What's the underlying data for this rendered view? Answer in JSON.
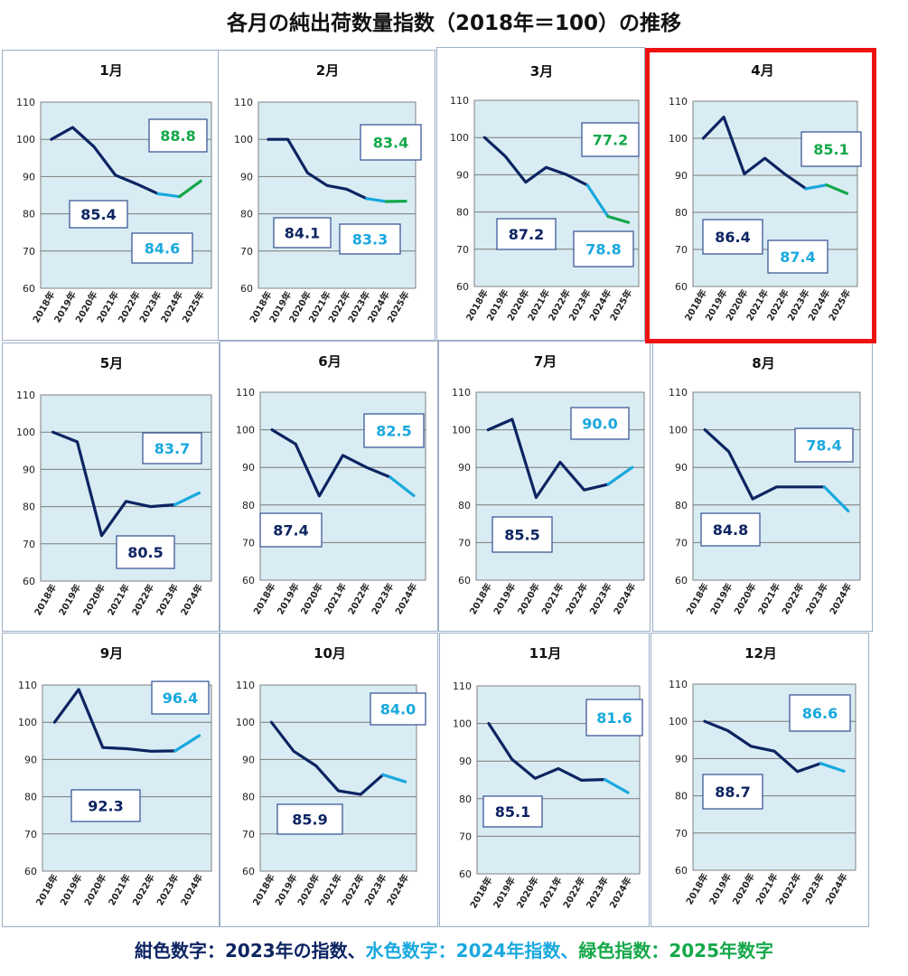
{
  "title": "各月の純出荷数量指数（2018年＝100）の推移",
  "colors": {
    "c2023": "#0d2462",
    "c2024": "#19a8de",
    "c2025": "#14a84a"
  },
  "legend": [
    {
      "text": "紺色数字：2023年の指数、",
      "color": "#0d2462"
    },
    {
      "text": "水色数字：2024年指数、",
      "color": "#19a8de"
    },
    {
      "text": "緑色指数：2025年数字",
      "color": "#14a84a"
    }
  ],
  "chart_data": [
    {
      "type": "line",
      "title": "1月",
      "ylim": [
        60,
        110
      ],
      "yticks": [
        60,
        70,
        80,
        90,
        100,
        110
      ],
      "categories": [
        "2018年",
        "2019年",
        "2020年",
        "2021年",
        "2022年",
        "2023年",
        "2024年",
        "2025年"
      ],
      "values": [
        100,
        103.2,
        98,
        90.4,
        88,
        85.4,
        84.6,
        88.8
      ],
      "labels": [
        {
          "text": "85.4",
          "series": "2023"
        },
        {
          "text": "84.6",
          "series": "2024"
        },
        {
          "text": "88.8",
          "series": "2025"
        }
      ]
    },
    {
      "type": "line",
      "title": "2月",
      "ylim": [
        60,
        110
      ],
      "yticks": [
        60,
        70,
        80,
        90,
        100,
        110
      ],
      "categories": [
        "2018年",
        "2019年",
        "2020年",
        "2021年",
        "2022年",
        "2023年",
        "2024年",
        "2025年"
      ],
      "values": [
        100,
        100,
        91,
        87.6,
        86.6,
        84.1,
        83.3,
        83.4
      ],
      "labels": [
        {
          "text": "84.1",
          "series": "2023"
        },
        {
          "text": "83.3",
          "series": "2024"
        },
        {
          "text": "83.4",
          "series": "2025"
        }
      ]
    },
    {
      "type": "line",
      "title": "3月",
      "ylim": [
        60,
        110
      ],
      "yticks": [
        60,
        70,
        80,
        90,
        100,
        110
      ],
      "categories": [
        "2018年",
        "2019年",
        "2020年",
        "2021年",
        "2022年",
        "2023年",
        "2024年",
        "2025年"
      ],
      "values": [
        100,
        95,
        88,
        92,
        90,
        87.2,
        78.8,
        77.2
      ],
      "labels": [
        {
          "text": "87.2",
          "series": "2023"
        },
        {
          "text": "78.8",
          "series": "2024"
        },
        {
          "text": "77.2",
          "series": "2025"
        }
      ]
    },
    {
      "type": "line",
      "title": "4月",
      "ylim": [
        60,
        110
      ],
      "yticks": [
        60,
        70,
        80,
        90,
        100,
        110
      ],
      "categories": [
        "2018年",
        "2019年",
        "2020年",
        "2021年",
        "2022年",
        "2023年",
        "2024年",
        "2025年"
      ],
      "values": [
        100,
        105.7,
        90.4,
        94.6,
        90.2,
        86.4,
        87.4,
        85.1
      ],
      "labels": [
        {
          "text": "86.4",
          "series": "2023"
        },
        {
          "text": "87.4",
          "series": "2024"
        },
        {
          "text": "85.1",
          "series": "2025"
        }
      ]
    },
    {
      "type": "line",
      "title": "5月",
      "ylim": [
        60,
        110
      ],
      "yticks": [
        60,
        70,
        80,
        90,
        100,
        110
      ],
      "categories": [
        "2018年",
        "2019年",
        "2020年",
        "2021年",
        "2022年",
        "2023年",
        "2024年"
      ],
      "values": [
        100,
        97.4,
        72.2,
        81.4,
        80,
        80.5,
        83.7
      ],
      "labels": [
        {
          "text": "80.5",
          "series": "2023"
        },
        {
          "text": "83.7",
          "series": "2024"
        }
      ]
    },
    {
      "type": "line",
      "title": "6月",
      "ylim": [
        60,
        110
      ],
      "yticks": [
        60,
        70,
        80,
        90,
        100,
        110
      ],
      "categories": [
        "2018年",
        "2019年",
        "2020年",
        "2021年",
        "2022年",
        "2023年",
        "2024年"
      ],
      "values": [
        100,
        96.2,
        82.4,
        93.2,
        90,
        87.4,
        82.5
      ],
      "labels": [
        {
          "text": "87.4",
          "series": "2023"
        },
        {
          "text": "82.5",
          "series": "2024"
        }
      ]
    },
    {
      "type": "line",
      "title": "7月",
      "ylim": [
        60,
        110
      ],
      "yticks": [
        60,
        70,
        80,
        90,
        100,
        110
      ],
      "categories": [
        "2018年",
        "2019年",
        "2020年",
        "2021年",
        "2022年",
        "2023年",
        "2024年"
      ],
      "values": [
        100,
        102.8,
        82,
        91.4,
        84,
        85.5,
        90.0
      ],
      "labels": [
        {
          "text": "85.5",
          "series": "2023"
        },
        {
          "text": "90.0",
          "series": "2024"
        }
      ]
    },
    {
      "type": "line",
      "title": "8月",
      "ylim": [
        60,
        110
      ],
      "yticks": [
        60,
        70,
        80,
        90,
        100,
        110
      ],
      "categories": [
        "2018年",
        "2019年",
        "2020年",
        "2021年",
        "2022年",
        "2023年",
        "2024年"
      ],
      "values": [
        100,
        94.2,
        81.6,
        84.8,
        84.8,
        84.8,
        78.4
      ],
      "labels": [
        {
          "text": "84.8",
          "series": "2023"
        },
        {
          "text": "78.4",
          "series": "2024"
        }
      ]
    },
    {
      "type": "line",
      "title": "9月",
      "ylim": [
        60,
        110
      ],
      "yticks": [
        60,
        70,
        80,
        90,
        100,
        110
      ],
      "categories": [
        "2018年",
        "2019年",
        "2020年",
        "2021年",
        "2022年",
        "2023年",
        "2024年"
      ],
      "values": [
        100,
        108.8,
        93.2,
        92.9,
        92.2,
        92.3,
        96.4
      ],
      "labels": [
        {
          "text": "92.3",
          "series": "2023"
        },
        {
          "text": "96.4",
          "series": "2024"
        }
      ]
    },
    {
      "type": "line",
      "title": "10月",
      "ylim": [
        60,
        110
      ],
      "yticks": [
        60,
        70,
        80,
        90,
        100,
        110
      ],
      "categories": [
        "2018年",
        "2019年",
        "2020年",
        "2021年",
        "2022年",
        "2023年",
        "2024年"
      ],
      "values": [
        100,
        92.2,
        88.3,
        81.6,
        80.6,
        85.9,
        84.0
      ],
      "labels": [
        {
          "text": "85.9",
          "series": "2023"
        },
        {
          "text": "84.0",
          "series": "2024"
        }
      ]
    },
    {
      "type": "line",
      "title": "11月",
      "ylim": [
        60,
        110
      ],
      "yticks": [
        60,
        70,
        80,
        90,
        100,
        110
      ],
      "categories": [
        "2018年",
        "2019年",
        "2020年",
        "2021年",
        "2022年",
        "2023年",
        "2024年"
      ],
      "values": [
        100,
        90.5,
        85.4,
        88,
        84.9,
        85.1,
        81.6
      ],
      "labels": [
        {
          "text": "85.1",
          "series": "2023"
        },
        {
          "text": "81.6",
          "series": "2024"
        }
      ]
    },
    {
      "type": "line",
      "title": "12月",
      "ylim": [
        60,
        110
      ],
      "yticks": [
        60,
        70,
        80,
        90,
        100,
        110
      ],
      "categories": [
        "2018年",
        "2019年",
        "2020年",
        "2021年",
        "2022年",
        "2023年",
        "2024年"
      ],
      "values": [
        100,
        97.5,
        93.3,
        92,
        86.5,
        88.7,
        86.6
      ],
      "labels": [
        {
          "text": "88.7",
          "series": "2023"
        },
        {
          "text": "86.6",
          "series": "2024"
        }
      ]
    }
  ]
}
